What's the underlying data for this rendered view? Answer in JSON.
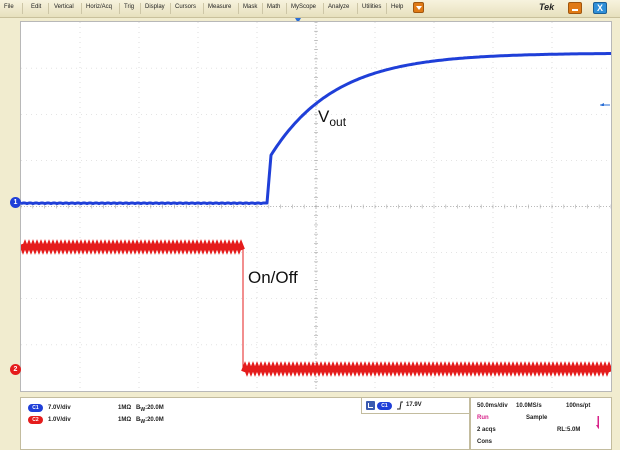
{
  "menu": {
    "items": [
      "File",
      "Edit",
      "Vertical",
      "Horiz/Acq",
      "Trig",
      "Display",
      "Cursors",
      "Measure",
      "Mask",
      "Math",
      "MyScope",
      "Analyze",
      "Utilities",
      "Help"
    ],
    "brand": "Tek",
    "close_glyph": "X"
  },
  "icons": {
    "menu_dropdown": "chevron-down-icon",
    "minimize": "minimize-icon",
    "close": "close-icon",
    "trigger_position": "trigger-position-icon",
    "trigger_level": "trigger-level-icon",
    "trigger_slope": "rising-edge-icon",
    "run_indicator": "trigger-arrow-icon"
  },
  "colors": {
    "ch1": "#1f3fd8",
    "ch2": "#e51c1c",
    "accent_orange": "#e07a16",
    "run": "#d8228a"
  },
  "waveforms": {
    "vout_label": "V",
    "vout_sub": "out",
    "onoff_label": "On/Off",
    "ch1_marker": "1",
    "ch2_marker": "2"
  },
  "channels": [
    {
      "chip": "C1",
      "scale": "7.0V/div",
      "impedance": "1MΩ",
      "bw_prefix": "B",
      "bw_sub": "W",
      "bw_value": ":20.0M",
      "color": "#1f3fd8"
    },
    {
      "chip": "C2",
      "scale": "1.0V/div",
      "impedance": "1MΩ",
      "bw_prefix": "B",
      "bw_sub": "W",
      "bw_value": ":20.0M",
      "color": "#e51c1c"
    }
  ],
  "trigger": {
    "chip": "C1",
    "level": "17.9V"
  },
  "acquisition": {
    "timebase": "50.0ms/div",
    "sample_rate": "10.0MS/s",
    "resolution": "100ns/pt",
    "state": "Run",
    "mode": "Sample",
    "acqs": "2 acqs",
    "record_length": "RL:5.0M",
    "extra": "Cons"
  }
}
